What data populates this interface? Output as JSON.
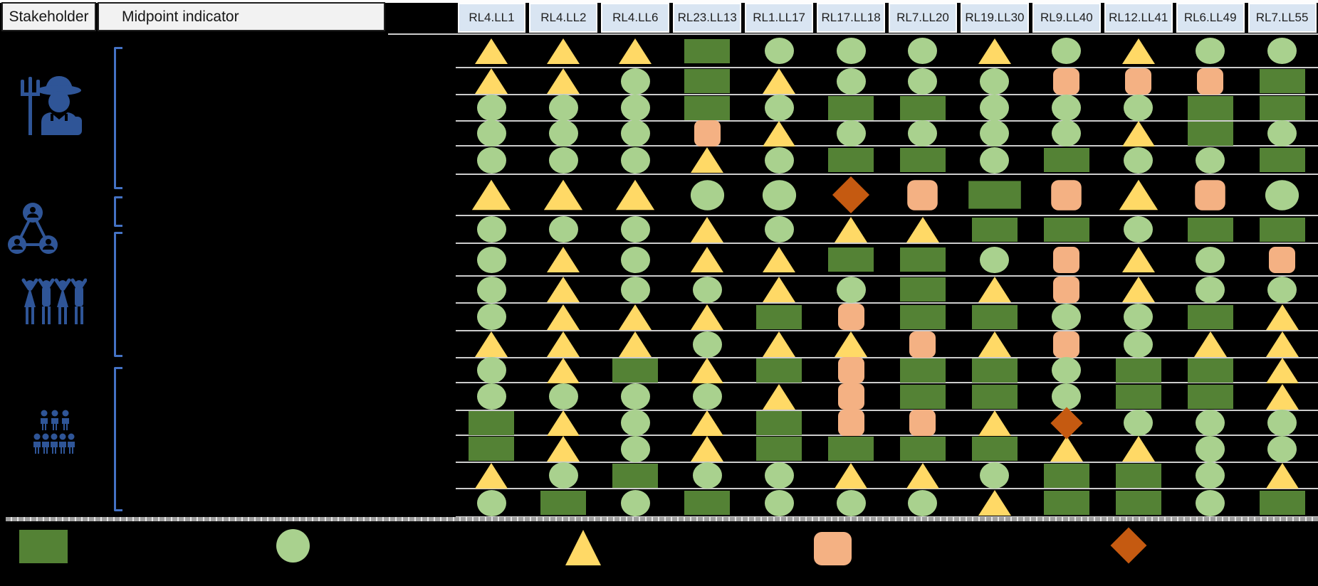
{
  "header": {
    "stakeholder_label": "Stakeholder",
    "midpoint_label": "Midpoint indicator"
  },
  "symbol_key": {
    "G": "dark-green-rectangle",
    "C": "light-green-circle",
    "T": "yellow-triangle",
    "S": "salmon-rounded-square",
    "D": "dark-orange-diamond"
  },
  "stakeholder_groups": [
    {
      "icon": "farmer-icon",
      "rows": "1-5"
    },
    {
      "icon": "network-icon",
      "rows": "6-7"
    },
    {
      "icon": "community-icon",
      "rows": "8-12"
    },
    {
      "icon": "crowd-icon",
      "rows": "13-17"
    }
  ],
  "chart_data": {
    "type": "heatmap",
    "columns": [
      "RL4.LL1",
      "RL4.LL2",
      "RL4.LL6",
      "RL23.LL13",
      "RL1.LL17",
      "RL17.LL18",
      "RL7.LL20",
      "RL19.LL30",
      "RL9.LL40",
      "RL12.LL41",
      "RL6.LL49",
      "RL7.LL55"
    ],
    "row_count": 17,
    "matrix": [
      [
        "T",
        "T",
        "T",
        "G",
        "C",
        "C",
        "C",
        "T",
        "C",
        "T",
        "C",
        "C"
      ],
      [
        "T",
        "T",
        "C",
        "G",
        "T",
        "C",
        "C",
        "C",
        "S",
        "S",
        "S",
        "G"
      ],
      [
        "C",
        "C",
        "C",
        "G",
        "C",
        "G",
        "G",
        "C",
        "C",
        "C",
        "G",
        "G"
      ],
      [
        "C",
        "C",
        "C",
        "S",
        "T",
        "C",
        "C",
        "C",
        "C",
        "T",
        "G",
        "C"
      ],
      [
        "C",
        "C",
        "C",
        "T",
        "C",
        "G",
        "G",
        "C",
        "G",
        "C",
        "C",
        "G"
      ],
      [
        "T",
        "T",
        "T",
        "C",
        "C",
        "D",
        "S",
        "G",
        "S",
        "T",
        "S",
        "C"
      ],
      [
        "C",
        "C",
        "C",
        "T",
        "C",
        "T",
        "T",
        "G",
        "G",
        "C",
        "G",
        "G"
      ],
      [
        "C",
        "T",
        "C",
        "T",
        "T",
        "G",
        "G",
        "C",
        "S",
        "T",
        "C",
        "S"
      ],
      [
        "C",
        "T",
        "C",
        "C",
        "T",
        "C",
        "G",
        "T",
        "S",
        "T",
        "C",
        "C"
      ],
      [
        "C",
        "T",
        "T",
        "T",
        "G",
        "S",
        "G",
        "G",
        "C",
        "C",
        "G",
        "T"
      ],
      [
        "T",
        "T",
        "T",
        "C",
        "T",
        "T",
        "S",
        "T",
        "S",
        "C",
        "T",
        "T"
      ],
      [
        "C",
        "T",
        "G",
        "T",
        "G",
        "S",
        "G",
        "G",
        "C",
        "G",
        "G",
        "T"
      ],
      [
        "C",
        "C",
        "C",
        "C",
        "T",
        "S",
        "G",
        "G",
        "C",
        "G",
        "G",
        "T"
      ],
      [
        "G",
        "T",
        "C",
        "T",
        "G",
        "S",
        "S",
        "T",
        "D",
        "C",
        "C",
        "C"
      ],
      [
        "G",
        "T",
        "C",
        "T",
        "G",
        "G",
        "G",
        "G",
        "T",
        "T",
        "C",
        "C"
      ],
      [
        "T",
        "C",
        "G",
        "C",
        "C",
        "T",
        "T",
        "C",
        "G",
        "G",
        "C",
        "T"
      ],
      [
        "C",
        "G",
        "C",
        "G",
        "C",
        "C",
        "C",
        "T",
        "G",
        "G",
        "C",
        "G"
      ]
    ],
    "legend_symbols": [
      "G",
      "C",
      "T",
      "S",
      "D"
    ]
  },
  "colors": {
    "dark_green": "#548235",
    "light_green": "#A9D18E",
    "yellow": "#FFD966",
    "salmon": "#F4B183",
    "dark_orange": "#C55A11",
    "icon_blue": "#2F5597",
    "bracket_blue": "#4472C4",
    "header_blue": "#D9E5F2",
    "header_gray": "#F2F2F2"
  }
}
